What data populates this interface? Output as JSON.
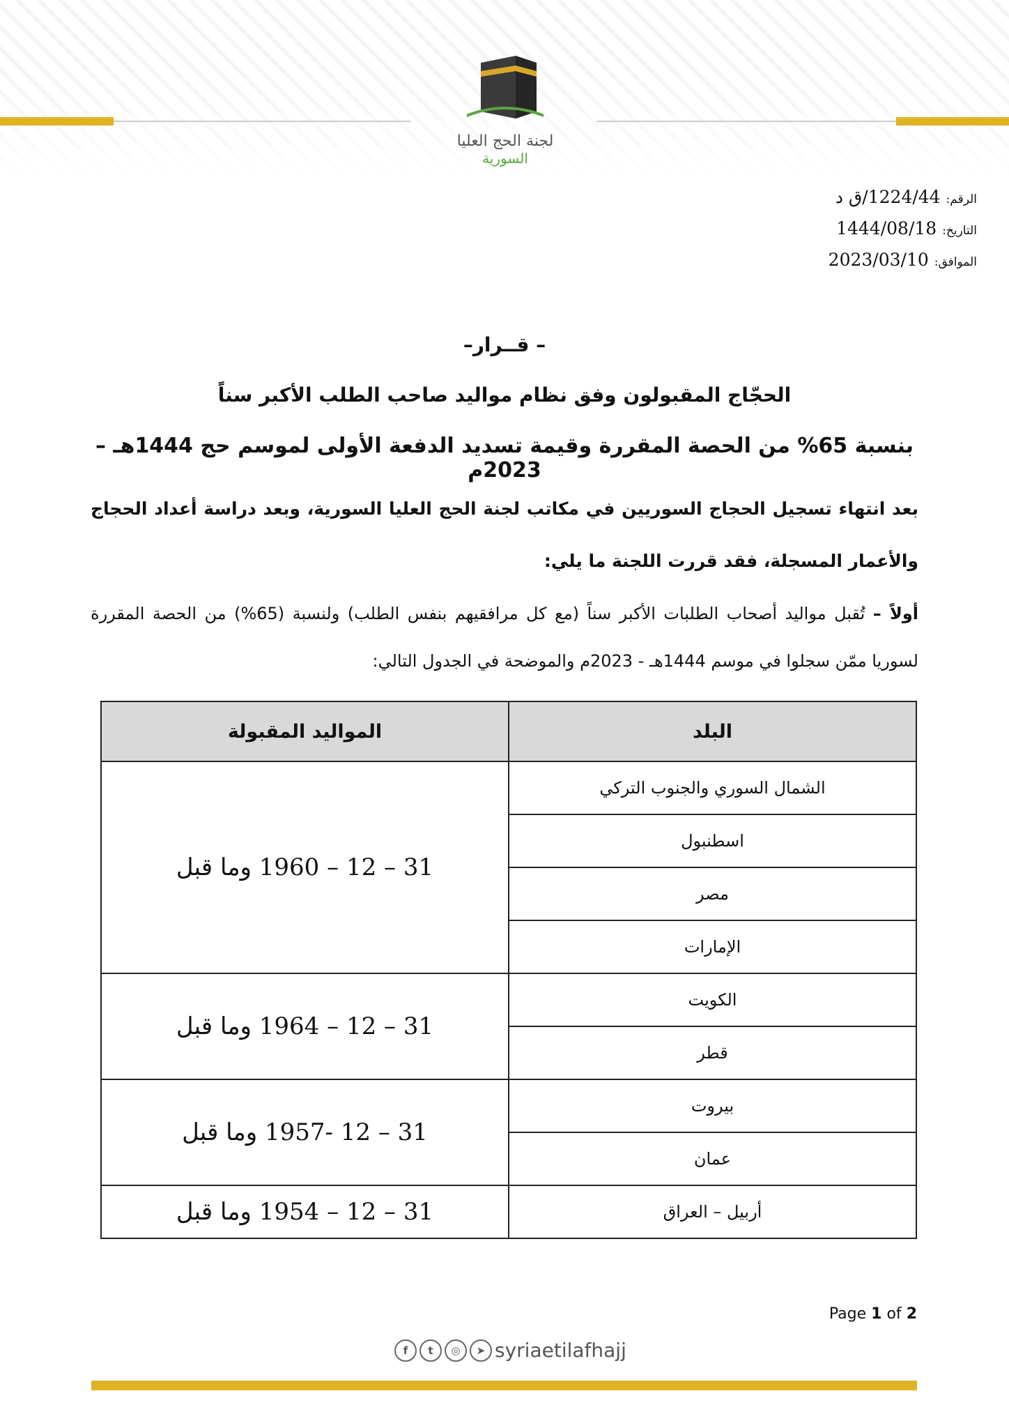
{
  "header": {
    "org_line1": "لجنة الحج العليا",
    "org_line2": "السورية",
    "brand_color": "#e0b323",
    "green": "#5aa540"
  },
  "meta": {
    "number_label": "الرقم:",
    "number": "1224/44/ق د",
    "date_label": "التاريخ:",
    "date_hijri": "1444/08/18",
    "corresponding_label": "الموافق:",
    "date_greg": "2023/03/10"
  },
  "title": "– قــرار–",
  "subtitle1": "الحجّاج المقبولون وفق نظام مواليد صاحب الطلب الأكبر سناً",
  "subtitle2": "بنسبة 65% من الحصة المقررة وقيمة تسديد الدفعة الأولى لموسم حج 1444هـ – 2023م",
  "intro": "بعد انتهاء تسجيل الحجاج السوريين في مكاتب لجنة الحج العليا السورية، وبعد دراسة أعداد الحجاج والأعمار المسجلة، فقد قررت اللجنة ما يلي:",
  "first_label": "أولاً –",
  "first_text": "تُقبل مواليد أصحاب الطلبات الأكبر سناً (مع كل مرافقيهم بنفس الطلب) ولنسبة (65%) من الحصة المقررة لسوريا ممّن سجلوا في موسم 1444هـ - 2023م والموضحة في الجدول التالي:",
  "table": {
    "headers": [
      "البلد",
      "المواليد المقبولة"
    ],
    "groups": [
      {
        "countries": [
          "الشمال السوري والجنوب التركي",
          "اسطنبول",
          "مصر",
          "الإمارات"
        ],
        "births": "31 – 12 – 1960 وما قبل"
      },
      {
        "countries": [
          "الكويت",
          "قطر"
        ],
        "births": "31 – 12 – 1964 وما قبل"
      },
      {
        "countries": [
          "بيروت",
          "عمان"
        ],
        "births": "31 – 12 -1957 وما قبل"
      },
      {
        "countries": [
          "أربيل – العراق"
        ],
        "births": "31 – 12 – 1954 وما قبل"
      }
    ]
  },
  "footer": {
    "page_word": "Page",
    "page": "1",
    "of_word": "of",
    "total": "2",
    "handle": "syriaetilafhajj",
    "icons": [
      "facebook-icon",
      "twitter-icon",
      "instagram-icon",
      "telegram-icon"
    ]
  }
}
